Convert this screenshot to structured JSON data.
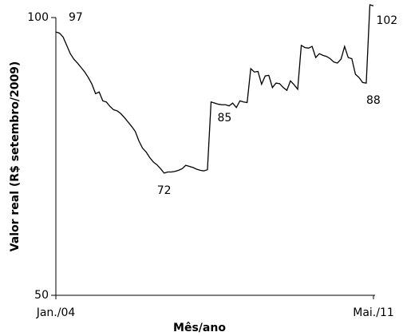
{
  "chart_data": {
    "type": "line",
    "ylabel": "Valor real (R$ setembro/2009)",
    "xlabel": "Mês/ano",
    "categories": [
      "Jan./04",
      null,
      null,
      null,
      null,
      null,
      null,
      null,
      null,
      null,
      null,
      null,
      null,
      null,
      null,
      null,
      null,
      null,
      null,
      null,
      null,
      null,
      null,
      null,
      null,
      null,
      null,
      null,
      null,
      null,
      null,
      null,
      null,
      null,
      null,
      null,
      null,
      null,
      null,
      null,
      null,
      null,
      null,
      null,
      null,
      null,
      null,
      null,
      null,
      null,
      null,
      null,
      null,
      null,
      null,
      null,
      null,
      null,
      null,
      null,
      null,
      null,
      null,
      null,
      null,
      null,
      null,
      null,
      null,
      null,
      null,
      null,
      null,
      null,
      null,
      null,
      null,
      null,
      null,
      null,
      null,
      null,
      null,
      null,
      null,
      null,
      null,
      null,
      "Mai./11"
    ],
    "series": [
      {
        "color": "#000000",
        "values": [
          97.4,
          97.2,
          96.5,
          95,
          93.5,
          92.5,
          91.8,
          91,
          90.2,
          89.2,
          88,
          86.3,
          86.6,
          85,
          84.8,
          84,
          83.4,
          83.2,
          82.7,
          82,
          81.2,
          80.4,
          79.5,
          77.8,
          76.5,
          75.8,
          74.8,
          74,
          73.5,
          72.8,
          72,
          72.2,
          72.2,
          72.3,
          72.5,
          72.8,
          73.4,
          73.2,
          73,
          72.7,
          72.5,
          72.4,
          72.6,
          84.8,
          84.6,
          84.4,
          84.3,
          84.3,
          84.1,
          84.6,
          83.8,
          85,
          84.8,
          84.7,
          90.8,
          90.2,
          90.3,
          88,
          89.5,
          89.6,
          87.4,
          88.2,
          88.1,
          87.4,
          86.9,
          88.6,
          87.9,
          87.1,
          95,
          94.6,
          94.5,
          94.8,
          92.8,
          93.5,
          93.2,
          93,
          92.6,
          92,
          91.8,
          92.5,
          94.8,
          92.8,
          92.6,
          89.8,
          89.2,
          88.3,
          88.2,
          102.3,
          102.1
        ],
        "value_labels": [
          "97",
          null,
          null,
          null,
          null,
          null,
          null,
          null,
          null,
          null,
          null,
          null,
          null,
          null,
          null,
          null,
          null,
          null,
          null,
          null,
          null,
          null,
          null,
          null,
          null,
          null,
          null,
          null,
          null,
          null,
          "72",
          null,
          null,
          null,
          null,
          null,
          null,
          null,
          null,
          null,
          null,
          null,
          null,
          "85",
          null,
          null,
          null,
          null,
          null,
          null,
          null,
          null,
          null,
          null,
          null,
          null,
          null,
          null,
          null,
          null,
          null,
          null,
          null,
          null,
          null,
          null,
          null,
          null,
          null,
          null,
          null,
          null,
          null,
          null,
          null,
          null,
          null,
          null,
          null,
          null,
          null,
          null,
          null,
          null,
          null,
          null,
          "88",
          "102",
          null
        ]
      }
    ],
    "ylim": [
      50,
      100
    ],
    "yticks": [
      50,
      100
    ],
    "grid": false
  }
}
